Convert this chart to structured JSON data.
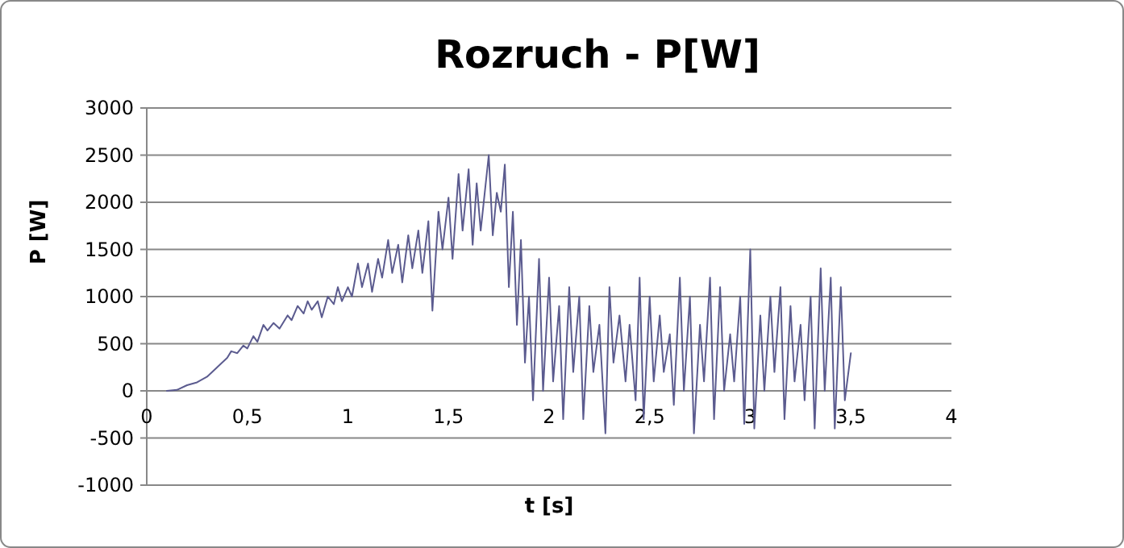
{
  "chart_data": {
    "type": "line",
    "title": "Rozruch - P[W]",
    "xlabel": "t [s]",
    "ylabel": "P [W]",
    "xlim": [
      0,
      4
    ],
    "xticks": [
      0,
      {
        "value": 0.5,
        "label": "0,5"
      },
      1,
      {
        "value": 1.5,
        "label": "1,5"
      },
      2,
      {
        "value": 2.5,
        "label": "2,5"
      },
      3,
      {
        "value": 3.5,
        "label": "3,5"
      },
      4
    ],
    "ylim": [
      -1000,
      3000
    ],
    "yticks": [
      -1000,
      -500,
      0,
      500,
      1000,
      1500,
      2000,
      2500,
      3000
    ],
    "grid": "y",
    "series": [
      {
        "color": "#5b5b8f",
        "x": [
          0.1,
          0.15,
          0.2,
          0.25,
          0.3,
          0.35,
          0.4,
          0.42,
          0.45,
          0.48,
          0.5,
          0.53,
          0.55,
          0.58,
          0.6,
          0.63,
          0.66,
          0.7,
          0.72,
          0.75,
          0.78,
          0.8,
          0.82,
          0.85,
          0.87,
          0.9,
          0.93,
          0.95,
          0.97,
          1.0,
          1.02,
          1.05,
          1.07,
          1.1,
          1.12,
          1.15,
          1.17,
          1.2,
          1.22,
          1.25,
          1.27,
          1.3,
          1.32,
          1.35,
          1.37,
          1.4,
          1.42,
          1.45,
          1.47,
          1.5,
          1.52,
          1.55,
          1.57,
          1.6,
          1.62,
          1.64,
          1.66,
          1.7,
          1.72,
          1.74,
          1.76,
          1.78,
          1.8,
          1.82,
          1.84,
          1.86,
          1.88,
          1.9,
          1.92,
          1.95,
          1.97,
          2.0,
          2.02,
          2.05,
          2.07,
          2.1,
          2.12,
          2.15,
          2.17,
          2.2,
          2.22,
          2.25,
          2.28,
          2.3,
          2.32,
          2.35,
          2.38,
          2.4,
          2.43,
          2.45,
          2.47,
          2.5,
          2.52,
          2.55,
          2.57,
          2.6,
          2.62,
          2.65,
          2.67,
          2.7,
          2.72,
          2.75,
          2.77,
          2.8,
          2.82,
          2.85,
          2.87,
          2.9,
          2.92,
          2.95,
          2.97,
          3.0,
          3.02,
          3.05,
          3.07,
          3.1,
          3.12,
          3.15,
          3.17,
          3.2,
          3.22,
          3.25,
          3.27,
          3.3,
          3.32,
          3.35,
          3.37,
          3.4,
          3.42,
          3.45,
          3.47,
          3.5
        ],
        "values": [
          0,
          10,
          60,
          90,
          150,
          250,
          350,
          420,
          400,
          480,
          450,
          580,
          520,
          700,
          640,
          720,
          660,
          800,
          750,
          900,
          820,
          950,
          860,
          950,
          780,
          1000,
          920,
          1100,
          950,
          1100,
          1000,
          1350,
          1100,
          1350,
          1050,
          1400,
          1200,
          1600,
          1250,
          1550,
          1150,
          1650,
          1300,
          1700,
          1250,
          1800,
          850,
          1900,
          1500,
          2050,
          1400,
          2300,
          1700,
          2350,
          1550,
          2200,
          1700,
          2500,
          1650,
          2100,
          1900,
          2400,
          1100,
          1900,
          700,
          1600,
          300,
          1000,
          -100,
          1400,
          0,
          1200,
          100,
          900,
          -300,
          1100,
          200,
          1000,
          -300,
          900,
          200,
          700,
          -450,
          1100,
          300,
          800,
          100,
          700,
          -100,
          1200,
          -300,
          1000,
          100,
          800,
          200,
          600,
          -150,
          1200,
          0,
          1000,
          -450,
          700,
          100,
          1200,
          -300,
          1100,
          0,
          600,
          100,
          1000,
          -350,
          1500,
          -400,
          800,
          0,
          1000,
          200,
          1100,
          -300,
          900,
          100,
          700,
          -100,
          1000,
          -400,
          1300,
          0,
          1200,
          -400,
          1100,
          -100,
          400
        ]
      }
    ]
  }
}
